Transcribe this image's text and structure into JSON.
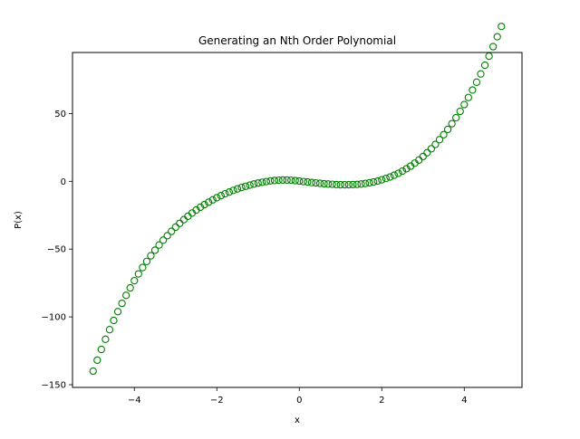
{
  "chart_data": {
    "type": "scatter",
    "title": "Generating an Nth Order Polynomial",
    "xlabel": "x",
    "ylabel": "P(x)",
    "xlim": [
      -5.5,
      5.4
    ],
    "ylim": [
      -152,
      95
    ],
    "xticks": [
      -4,
      -2,
      0,
      2,
      4
    ],
    "yticks": [
      -150,
      -100,
      -50,
      0,
      50
    ],
    "xtick_labels": [
      "−4",
      "−2",
      "0",
      "2",
      "4"
    ],
    "ytick_labels": [
      "−150",
      "−100",
      "−50",
      "0",
      "50"
    ],
    "grid": false,
    "marker": "open-circle",
    "color": "#008000",
    "series": [
      {
        "x": [
          -5.0,
          -4.9,
          -4.8,
          -4.7,
          -4.6,
          -4.5,
          -4.4,
          -4.3,
          -4.2,
          -4.1,
          -4.0,
          -3.9,
          -3.8,
          -3.7,
          -3.6,
          -3.5,
          -3.4,
          -3.3,
          -3.2,
          -3.1,
          -3.0,
          -2.9,
          -2.8,
          -2.7,
          -2.6,
          -2.5,
          -2.4,
          -2.3,
          -2.2,
          -2.1,
          -2.0,
          -1.9,
          -1.8,
          -1.7,
          -1.6,
          -1.5,
          -1.4,
          -1.3,
          -1.2,
          -1.1,
          -1.0,
          -0.9,
          -0.8,
          -0.7,
          -0.6,
          -0.5,
          -0.4,
          -0.3,
          -0.2,
          -0.1,
          0.0,
          0.1,
          0.2,
          0.3,
          0.4,
          0.5,
          0.6,
          0.7,
          0.8,
          0.9,
          1.0,
          1.1,
          1.2,
          1.3,
          1.4,
          1.5,
          1.6,
          1.7,
          1.8,
          1.9,
          2.0,
          2.1,
          2.2,
          2.3,
          2.4,
          2.5,
          2.6,
          2.7,
          2.8,
          2.9,
          3.0,
          3.1,
          3.2,
          3.3,
          3.4,
          3.5,
          3.6,
          3.7,
          3.8,
          3.9,
          4.0,
          4.1,
          4.2,
          4.3,
          4.4,
          4.5,
          4.6,
          4.7,
          4.8,
          4.9
        ],
        "y": [
          -140.0,
          -131.9,
          -124.0,
          -116.5,
          -109.4,
          -102.6,
          -96.1,
          -90.0,
          -84.1,
          -78.6,
          -73.3,
          -68.3,
          -63.6,
          -59.1,
          -54.9,
          -50.8,
          -47.0,
          -43.4,
          -40.1,
          -36.9,
          -33.8,
          -31.0,
          -28.3,
          -25.8,
          -23.4,
          -21.2,
          -19.1,
          -17.2,
          -15.4,
          -13.7,
          -12.1,
          -10.6,
          -9.2,
          -7.9,
          -6.7,
          -5.6,
          -4.6,
          -3.7,
          -2.8,
          -2.0,
          -1.3,
          -0.7,
          -0.2,
          0.3,
          0.6,
          0.8,
          0.9,
          0.9,
          0.8,
          0.5,
          0.2,
          -0.2,
          -0.5,
          -0.9,
          -1.2,
          -1.5,
          -1.8,
          -2.0,
          -2.2,
          -2.4,
          -2.5,
          -2.5,
          -2.5,
          -2.4,
          -2.3,
          -2.0,
          -1.6,
          -1.1,
          -0.5,
          0.2,
          1.1,
          2.1,
          3.2,
          4.5,
          5.9,
          7.5,
          9.3,
          11.2,
          13.4,
          15.7,
          18.3,
          21.1,
          24.0,
          27.2,
          30.7,
          34.4,
          38.3,
          42.5,
          46.9,
          51.6,
          56.6,
          61.8,
          67.3,
          73.1,
          79.2,
          85.6,
          92.3,
          99.3,
          106.6,
          114.2
        ]
      }
    ]
  }
}
